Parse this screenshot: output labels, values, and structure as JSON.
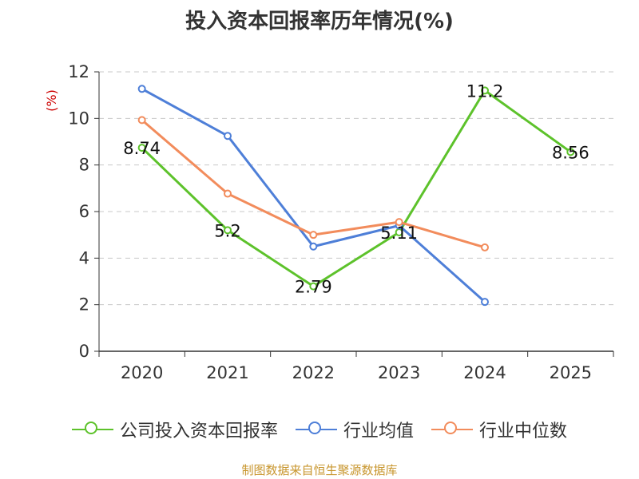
{
  "page": {
    "title": "投入资本回报率历年情况(%)",
    "source": "制图数据来自恒生聚源数据库"
  },
  "chart_data": {
    "type": "line",
    "title": "投入资本回报率历年情况(%)",
    "ylabel": "(%)",
    "xlabel": "",
    "ylim": [
      0,
      12
    ],
    "yticks": [
      "0",
      "2",
      "4",
      "6",
      "8",
      "10",
      "12"
    ],
    "categories": [
      "2020",
      "2021",
      "2022",
      "2023",
      "2024",
      "2025"
    ],
    "grid": true,
    "legend_position": "bottom",
    "series": [
      {
        "name": "公司投入资本回报率",
        "color": "#5dc22b",
        "values": [
          8.74,
          5.2,
          2.79,
          5.11,
          11.2,
          8.56
        ],
        "labels": [
          "8.74",
          "5.2",
          "2.79",
          "5.11",
          "11.2",
          "8.56"
        ]
      },
      {
        "name": "行业均值",
        "color": "#4e7fd8",
        "values": [
          11.27,
          9.25,
          4.5,
          5.4,
          2.12,
          null
        ]
      },
      {
        "name": "行业中位数",
        "color": "#f28c5c",
        "values": [
          9.93,
          6.77,
          5.0,
          5.55,
          4.46,
          null
        ]
      }
    ]
  }
}
